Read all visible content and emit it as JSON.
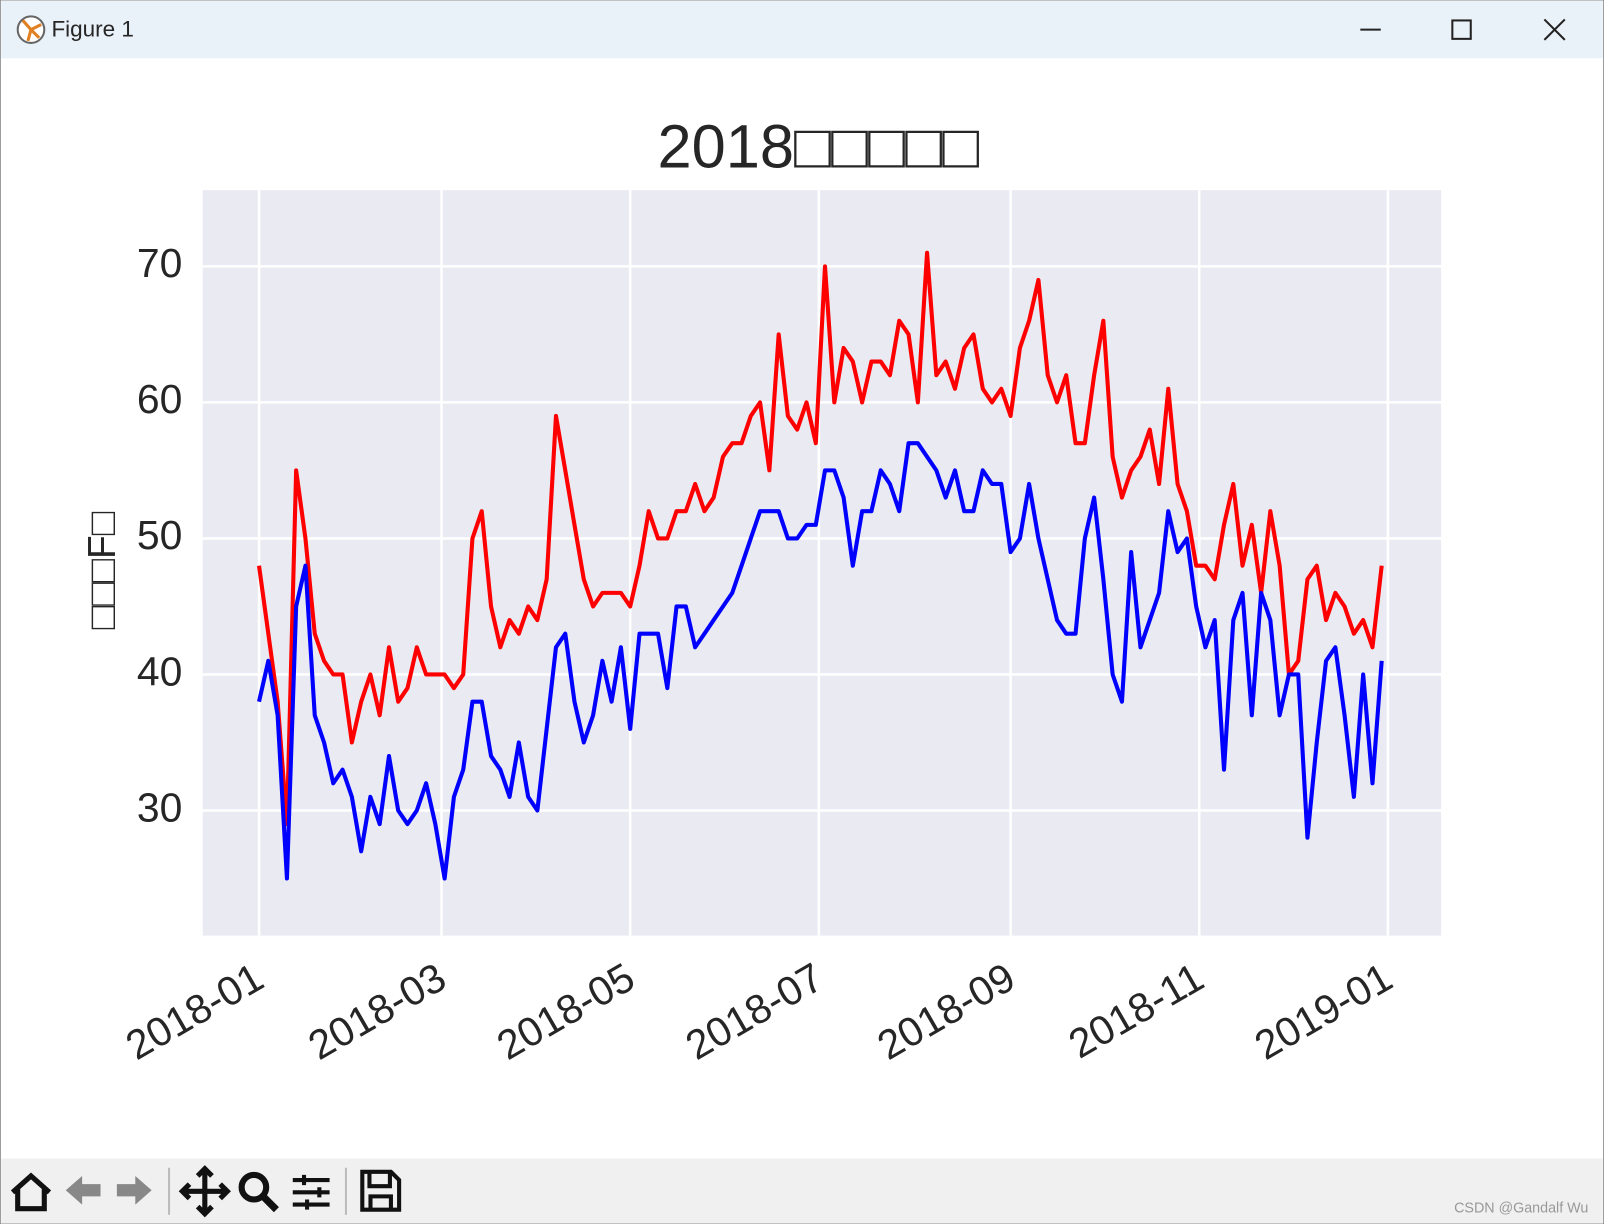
{
  "window_title": "Figure 1",
  "watermark": "CSDN @Gandalf Wu",
  "chart_data": {
    "type": "line",
    "title": "2018□□□□□",
    "ylabel": "□□□F□",
    "grid": true,
    "x": [
      0,
      3,
      6,
      9,
      12,
      15,
      18,
      21,
      24,
      27,
      30,
      33,
      36,
      39,
      42,
      45,
      48,
      51,
      54,
      57,
      60,
      63,
      66,
      69,
      72,
      75,
      78,
      81,
      84,
      87,
      90,
      93,
      96,
      99,
      102,
      105,
      108,
      111,
      114,
      117,
      120,
      123,
      126,
      129,
      132,
      135,
      138,
      141,
      144,
      147,
      150,
      153,
      156,
      159,
      162,
      165,
      168,
      171,
      174,
      177,
      180,
      183,
      186,
      189,
      192,
      195,
      198,
      201,
      204,
      207,
      210,
      213,
      216,
      219,
      222,
      225,
      228,
      231,
      234,
      237,
      240,
      243,
      246,
      249,
      252,
      255,
      258,
      261,
      264,
      267,
      270,
      273,
      276,
      279,
      282,
      285,
      288,
      291,
      294,
      297,
      300,
      303,
      306,
      309,
      312,
      315,
      318,
      321,
      324,
      327,
      330,
      333,
      336,
      339,
      342,
      345,
      348,
      351,
      354,
      357,
      360,
      363
    ],
    "xlim": [
      -18.2,
      382.2
    ],
    "xticks": [
      {
        "value": 0,
        "label": "2018-01"
      },
      {
        "value": 59,
        "label": "2018-03"
      },
      {
        "value": 120,
        "label": "2018-05"
      },
      {
        "value": 181,
        "label": "2018-07"
      },
      {
        "value": 243,
        "label": "2018-09"
      },
      {
        "value": 304,
        "label": "2018-11"
      },
      {
        "value": 365,
        "label": "2019-01"
      }
    ],
    "ylim": [
      20.8,
      75.6
    ],
    "yticks": [
      30,
      40,
      50,
      60,
      70
    ],
    "series": [
      {
        "color": "#ff0000",
        "values": [
          48,
          43,
          38,
          29,
          55,
          50,
          43,
          41,
          40,
          40,
          35,
          38,
          40,
          37,
          42,
          38,
          39,
          42,
          40,
          40,
          40,
          39,
          40,
          50,
          52,
          45,
          42,
          44,
          43,
          45,
          44,
          47,
          59,
          55,
          51,
          47,
          45,
          46,
          46,
          46,
          45,
          48,
          52,
          50,
          50,
          52,
          52,
          54,
          52,
          53,
          56,
          57,
          57,
          59,
          60,
          55,
          65,
          59,
          58,
          60,
          57,
          70,
          60,
          64,
          63,
          60,
          63,
          63,
          62,
          66,
          65,
          60,
          71,
          62,
          63,
          61,
          64,
          65,
          61,
          60,
          61,
          59,
          64,
          66,
          69,
          62,
          60,
          62,
          57,
          57,
          62,
          66,
          56,
          53,
          55,
          56,
          58,
          54,
          61,
          54,
          52,
          48,
          48,
          47,
          51,
          54,
          48,
          51,
          46,
          52,
          48,
          40,
          41,
          47,
          48,
          44,
          46,
          45,
          43,
          44,
          42,
          48
        ]
      },
      {
        "color": "#0000ff",
        "values": [
          38,
          41,
          37,
          25,
          45,
          48,
          37,
          35,
          32,
          33,
          31,
          27,
          31,
          29,
          34,
          30,
          29,
          30,
          32,
          29,
          25,
          31,
          33,
          38,
          38,
          34,
          33,
          31,
          35,
          31,
          30,
          36,
          42,
          43,
          38,
          35,
          37,
          41,
          38,
          42,
          36,
          43,
          43,
          43,
          39,
          45,
          45,
          42,
          43,
          44,
          45,
          46,
          48,
          50,
          52,
          52,
          52,
          50,
          50,
          51,
          51,
          55,
          55,
          53,
          48,
          52,
          52,
          55,
          54,
          52,
          57,
          57,
          56,
          55,
          53,
          55,
          52,
          52,
          55,
          54,
          54,
          49,
          50,
          54,
          50,
          47,
          44,
          43,
          43,
          50,
          53,
          47,
          40,
          38,
          49,
          42,
          44,
          46,
          52,
          49,
          50,
          45,
          42,
          44,
          33,
          44,
          46,
          37,
          46,
          44,
          37,
          40,
          40,
          28,
          35,
          41,
          42,
          37,
          31,
          40,
          32,
          41
        ]
      }
    ]
  }
}
